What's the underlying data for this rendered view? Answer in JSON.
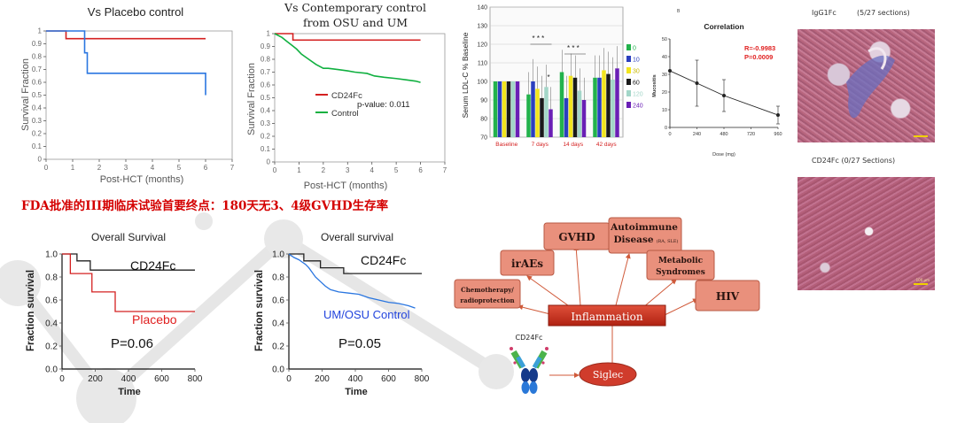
{
  "headline": "FDA批准的III期临床试验首要终点：180天无3、4级GVHD生存率",
  "colors": {
    "red_line": "#d42020",
    "blue_line": "#2a76e0",
    "green_line": "#10b040",
    "black_line": "#222222",
    "pink_box": "#e9907c",
    "inflammation_box": "#d03320",
    "siglec": "#d03c2c",
    "headline_red": "#d40000"
  },
  "chart_data": [
    {
      "id": "vs-placebo",
      "type": "line",
      "title": "Vs Placebo control",
      "xlabel": "Post-HCT (months)",
      "ylabel": "Survival Fraction",
      "xlim": [
        0,
        7
      ],
      "ylim": [
        0,
        1
      ],
      "xticks": [
        "0",
        "1",
        "2",
        "3",
        "4",
        "5",
        "6",
        "7"
      ],
      "yticks": [
        "0",
        "0.1",
        "0.2",
        "0.3",
        "0.4",
        "0.5",
        "0.6",
        "0.7",
        "0.8",
        "0.9",
        "1"
      ],
      "series": [
        {
          "color": "red_line",
          "x": [
            0,
            0.75,
            0.75,
            6
          ],
          "y": [
            1,
            1,
            0.94,
            0.94
          ]
        },
        {
          "color": "blue_line",
          "x": [
            0,
            1.45,
            1.45,
            1.55,
            1.55,
            6,
            6
          ],
          "y": [
            1,
            1,
            0.83,
            0.83,
            0.67,
            0.67,
            0.5
          ]
        }
      ]
    },
    {
      "id": "vs-contemporary",
      "type": "line",
      "title": "Vs Contemporary control",
      "title_line2": "from OSU and UM",
      "xlabel": "Post-HCT (months)",
      "ylabel": "Survival Fraction",
      "xlim": [
        0,
        7
      ],
      "ylim": [
        0,
        1
      ],
      "xticks": [
        "0",
        "1",
        "2",
        "3",
        "4",
        "5",
        "6",
        "7"
      ],
      "yticks": [
        "0",
        "0.1",
        "0.2",
        "0.3",
        "0.4",
        "0.5",
        "0.6",
        "0.7",
        "0.8",
        "0.9",
        "1"
      ],
      "annotation": "p-value: 0.011",
      "series": [
        {
          "name": "CD24Fc",
          "color": "red_line",
          "x": [
            0,
            0.75,
            0.75,
            6
          ],
          "y": [
            1,
            1,
            0.95,
            0.95
          ]
        },
        {
          "name": "Control",
          "color": "green_line",
          "x": [
            0,
            0.3,
            0.5,
            0.7,
            0.9,
            1.1,
            1.4,
            1.7,
            2.0,
            2.2,
            2.6,
            3.0,
            3.3,
            3.8,
            4.1,
            4.5,
            5.0,
            5.4,
            5.8,
            6.0
          ],
          "y": [
            1,
            0.97,
            0.94,
            0.91,
            0.88,
            0.84,
            0.8,
            0.76,
            0.73,
            0.73,
            0.72,
            0.71,
            0.7,
            0.69,
            0.67,
            0.66,
            0.65,
            0.64,
            0.63,
            0.62
          ]
        }
      ]
    },
    {
      "id": "ldl",
      "type": "bar",
      "ylabel": "Serum LDL-C % Baseline",
      "ylim": [
        70,
        140
      ],
      "yticks": [
        "70",
        "80",
        "90",
        "100",
        "110",
        "120",
        "130",
        "140"
      ],
      "categories": [
        "Baseline",
        "7 days",
        "14 days",
        "42 days"
      ],
      "significance": [
        "* * *",
        "*",
        "* * *"
      ],
      "series": [
        {
          "name": "0",
          "color": "#22b24c",
          "values": [
            100,
            93,
            105,
            102
          ]
        },
        {
          "name": "10",
          "color": "#2b3fbf",
          "values": [
            100,
            100,
            91,
            102
          ]
        },
        {
          "name": "30",
          "color": "#f2e51d",
          "values": [
            100,
            96,
            103,
            106
          ]
        },
        {
          "name": "60",
          "color": "#1a1a1a",
          "values": [
            100,
            91,
            102,
            104
          ]
        },
        {
          "name": "120",
          "color": "#a3d6c8",
          "values": [
            100,
            97,
            95,
            101
          ]
        },
        {
          "name": "240",
          "color": "#6a1fb5",
          "values": [
            100,
            85,
            90,
            107
          ]
        }
      ]
    },
    {
      "id": "correlation",
      "type": "scatter",
      "panel_label": "B",
      "title": "Correlation",
      "xlabel": "Dose (mg)",
      "ylabel": "Mucositis",
      "xlim": [
        0,
        960
      ],
      "ylim": [
        0,
        50
      ],
      "xticks": [
        "0",
        "240",
        "480",
        "720",
        "960"
      ],
      "yticks": [
        "0",
        "10",
        "20",
        "30",
        "40",
        "50"
      ],
      "annotation_r": "R=-0.9983",
      "annotation_p": "P=0.0009",
      "points": [
        {
          "x": 0,
          "y": 32,
          "err": 0
        },
        {
          "x": 240,
          "y": 25,
          "err": 13
        },
        {
          "x": 480,
          "y": 18,
          "err": 9
        },
        {
          "x": 960,
          "y": 7,
          "err": 5
        }
      ]
    },
    {
      "id": "overall-survival-1",
      "type": "line",
      "title": "Overall Survival",
      "xlabel": "Time",
      "ylabel": "Fraction survival",
      "xlim": [
        0,
        800
      ],
      "ylim": [
        0,
        1
      ],
      "xticks": [
        "0",
        "200",
        "400",
        "600",
        "800"
      ],
      "yticks": [
        "0.0",
        "0.2",
        "0.4",
        "0.6",
        "0.8",
        "1.0"
      ],
      "p_value": "P=0.06",
      "series": [
        {
          "name": "CD24Fc",
          "color": "black_line",
          "x": [
            0,
            90,
            90,
            170,
            170,
            800
          ],
          "y": [
            1,
            1,
            0.94,
            0.94,
            0.86,
            0.86
          ]
        },
        {
          "name": "Placebo",
          "color": "red_line",
          "x": [
            0,
            50,
            50,
            180,
            180,
            320,
            320,
            800
          ],
          "y": [
            1,
            1,
            0.83,
            0.83,
            0.67,
            0.67,
            0.5,
            0.5
          ]
        }
      ]
    },
    {
      "id": "overall-survival-2",
      "type": "line",
      "title": "Overall survival",
      "xlabel": "Time",
      "ylabel": "Fraction survival",
      "xlim": [
        0,
        800
      ],
      "ylim": [
        0,
        1
      ],
      "xticks": [
        "0",
        "200",
        "400",
        "600",
        "800"
      ],
      "yticks": [
        "0.0",
        "0.2",
        "0.4",
        "0.6",
        "0.8",
        "1.0"
      ],
      "p_value": "P=0.05",
      "series": [
        {
          "name": "CD24Fc",
          "color": "black_line",
          "x": [
            0,
            90,
            90,
            190,
            190,
            330,
            330,
            800
          ],
          "y": [
            1,
            1,
            0.94,
            0.94,
            0.88,
            0.88,
            0.83,
            0.83
          ]
        },
        {
          "name": "UM/OSU Control",
          "color": "blue_line",
          "x": [
            0,
            30,
            60,
            80,
            100,
            120,
            140,
            160,
            190,
            220,
            250,
            300,
            360,
            420,
            480,
            540,
            600,
            660,
            720,
            760
          ],
          "y": [
            1,
            0.97,
            0.95,
            0.93,
            0.91,
            0.88,
            0.84,
            0.8,
            0.76,
            0.72,
            0.69,
            0.67,
            0.66,
            0.65,
            0.62,
            0.6,
            0.58,
            0.57,
            0.55,
            0.53
          ]
        }
      ]
    }
  ],
  "diagram": {
    "center": "Inflammation",
    "boxes": {
      "gvhd": "GVHD",
      "autoimmune": "Autoimmune",
      "autoimmune2": "Disease",
      "autoimmune_sub": "(RA, SLE)",
      "iraes": "irAEs",
      "metabolic": "Metabolic",
      "metabolic2": "Syndromes",
      "chemo": "Chemotherapy/",
      "chemo2": "radioprotection",
      "hiv": "HIV"
    },
    "siglec": "Siglec",
    "cd24fc": "CD24Fc"
  },
  "histology": {
    "top_label": "IgG1Fc",
    "top_count": "(5/27 sections)",
    "bottom_label": "CD24Fc (0/27 Sections)",
    "scale": "100 µm"
  }
}
